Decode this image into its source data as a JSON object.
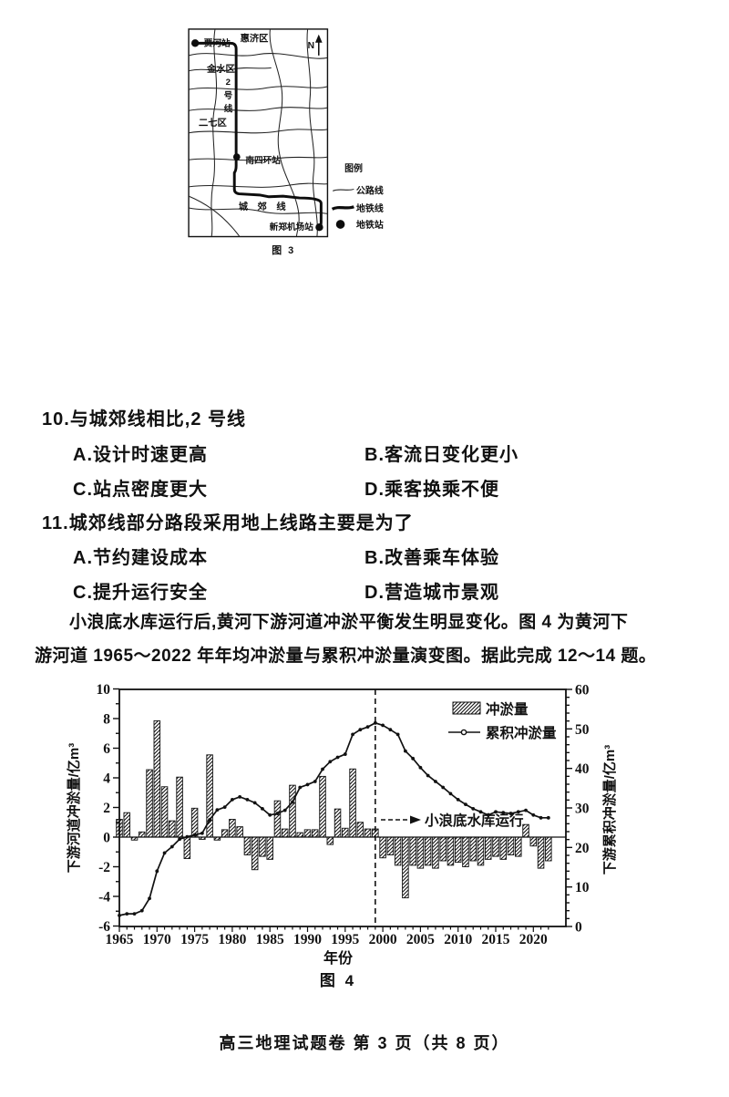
{
  "figure3": {
    "caption": "图 3",
    "north": "N",
    "labels": {
      "station_jiahe": "贾河站",
      "district_huiji": "惠济区",
      "district_jinshui": "金水区",
      "line2": [
        "2",
        "号",
        "线"
      ],
      "district_erqi": "二七区",
      "station_nansihuan": "南四环站",
      "line_suburban": "城 郊 线",
      "station_xinzheng_airport": "新郑机场站"
    },
    "legend": {
      "title": "图例",
      "road": "公路线",
      "metro": "地铁线",
      "station": "地铁站"
    }
  },
  "questions": [
    {
      "number": "10.",
      "stem": "与城郊线相比,2 号线",
      "options": [
        {
          "label": "A.",
          "text": "设计时速更高"
        },
        {
          "label": "B.",
          "text": "客流日变化更小"
        },
        {
          "label": "C.",
          "text": "站点密度更大"
        },
        {
          "label": "D.",
          "text": "乘客换乘不便"
        }
      ]
    },
    {
      "number": "11.",
      "stem": "城郊线部分路段采用地上线路主要是为了",
      "options": [
        {
          "label": "A.",
          "text": "节约建设成本"
        },
        {
          "label": "B.",
          "text": "改善乘车体验"
        },
        {
          "label": "C.",
          "text": "提升运行安全"
        },
        {
          "label": "D.",
          "text": "营造城市景观"
        }
      ]
    }
  ],
  "passage": {
    "line1": "小浪底水库运行后,黄河下游河道冲淤平衡发生明显变化。图 4 为黄河下",
    "line2": "游河道 1965～2022 年年均冲淤量与累积冲淤量演变图。据此完成 12～14 题。"
  },
  "chart_data": {
    "type": "bar+line",
    "caption": "图 4",
    "x_label": "年份",
    "x_range": [
      1965,
      2022
    ],
    "x_step": 1,
    "x_tick_labels": [
      "1965",
      "1970",
      "1975",
      "1980",
      "1985",
      "1990",
      "1995",
      "2000",
      "2005",
      "2010",
      "2015",
      "2020"
    ],
    "left_axis": {
      "label": "下游河道冲淤量/亿m³",
      "min": -6,
      "max": 10,
      "label_step": 2
    },
    "right_axis": {
      "label": "下游累积冲淤量/亿m³",
      "min": 0,
      "max": 60,
      "label_step": 10
    },
    "grid": false,
    "legend_position": "top-right-inside",
    "legend": [
      "冲淤量",
      "累积冲淤量"
    ],
    "event_line": {
      "year": 1999,
      "annotation": "小浪底水库运行",
      "style": "dashed-vertical"
    },
    "series": [
      {
        "name": "冲淤量",
        "type": "bar",
        "axis": "left",
        "unit": "亿m³",
        "values": [
          1.2,
          1.65,
          -0.2,
          0.35,
          4.55,
          7.85,
          3.4,
          1.1,
          4.05,
          -1.45,
          1.95,
          -0.15,
          5.55,
          -0.2,
          0.5,
          1.2,
          0.7,
          -1.2,
          -2.2,
          -1.3,
          -1.5,
          2.45,
          0.55,
          3.5,
          0.3,
          0.5,
          0.5,
          4.1,
          -0.5,
          1.9,
          0.6,
          4.6,
          1.0,
          0.55,
          0.55,
          -1.4,
          -1.2,
          -1.9,
          -4.1,
          -1.9,
          -2.1,
          -1.9,
          -2.1,
          -1.6,
          -1.9,
          -1.7,
          -2.0,
          -1.6,
          -1.9,
          -1.5,
          -1.3,
          -1.5,
          -1.2,
          -1.3,
          0.85,
          -0.6,
          -2.1,
          -1.6
        ]
      },
      {
        "name": "累积冲淤量",
        "type": "line",
        "axis": "right",
        "unit": "亿m³",
        "values": [
          2.8,
          3.2,
          3.2,
          4.0,
          7.1,
          14.0,
          18.6,
          20.2,
          22.1,
          22.7,
          23.2,
          23.6,
          27.0,
          29.5,
          30.2,
          32.1,
          32.8,
          32.1,
          31.3,
          29.8,
          28.2,
          28.6,
          29.4,
          31.5,
          35.2,
          35.9,
          36.7,
          39.8,
          41.7,
          42.8,
          43.6,
          48.6,
          49.8,
          50.5,
          51.5,
          50.9,
          49.8,
          48.6,
          44.4,
          42.5,
          40.2,
          38.2,
          36.7,
          35.2,
          33.6,
          32.1,
          30.9,
          29.8,
          29.0,
          28.2,
          29.0,
          28.8,
          28.6,
          29.0,
          29.4,
          28.2,
          27.5,
          27.5
        ]
      }
    ]
  },
  "footer": "高三地理试题卷 第 3 页（共 8 页）"
}
